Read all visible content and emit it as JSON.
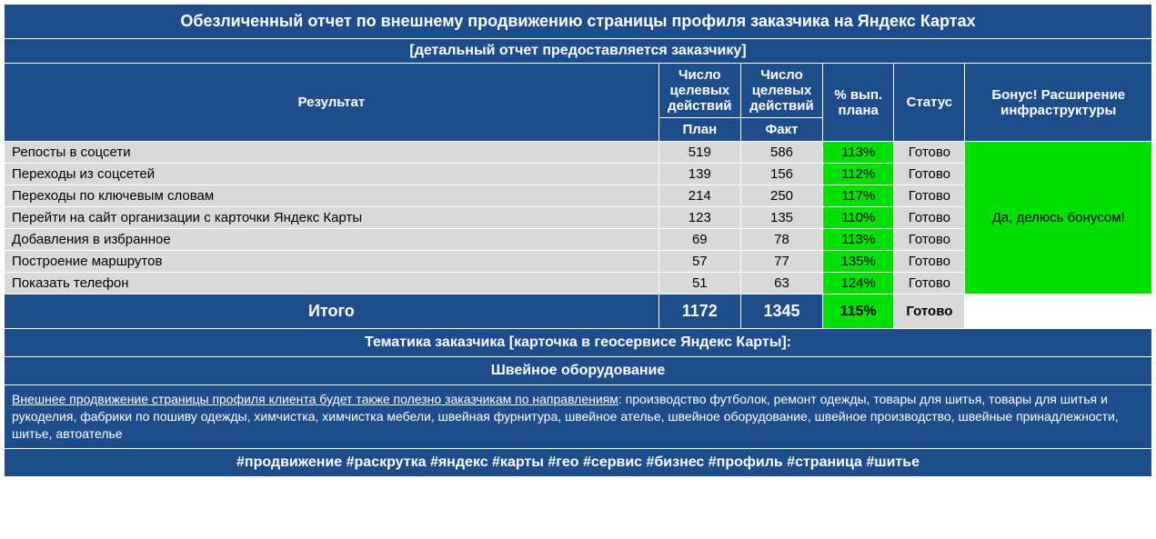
{
  "colors": {
    "header_bg": "#1e4d8c",
    "header_text": "#ffffff",
    "row_bg": "#d9d9d9",
    "row_text": "#000000",
    "green": "#00e000",
    "border": "#ffffff"
  },
  "title": "Обезличенный отчет по внешнему продвижению страницы профиля заказчика на Яндекс Картах",
  "subtitle": "[детальный отчет предоставляется заказчику]",
  "columns": {
    "result": "Результат",
    "actions": "Число целевых действий",
    "plan": "План",
    "fact": "Факт",
    "pct": "% вып. плана",
    "status": "Статус",
    "bonus": "Бонус! Расширение инфраструктуры"
  },
  "rows": [
    {
      "label": "Репосты в соцсети",
      "plan": 519,
      "fact": 586,
      "pct": "113%",
      "status": "Готово"
    },
    {
      "label": "Переходы из соцсетей",
      "plan": 139,
      "fact": 156,
      "pct": "112%",
      "status": "Готово"
    },
    {
      "label": "Переходы по ключевым словам",
      "plan": 214,
      "fact": 250,
      "pct": "117%",
      "status": "Готово"
    },
    {
      "label": "Перейти на сайт организации с карточки Яндекс Карты",
      "plan": 123,
      "fact": 135,
      "pct": "110%",
      "status": "Готово"
    },
    {
      "label": "Добавления в избранное",
      "plan": 69,
      "fact": 78,
      "pct": "113%",
      "status": "Готово"
    },
    {
      "label": "Построение маршрутов",
      "plan": 57,
      "fact": 77,
      "pct": "135%",
      "status": "Готово"
    },
    {
      "label": "Показать телефон",
      "plan": 51,
      "fact": 63,
      "pct": "124%",
      "status": "Готово"
    }
  ],
  "total": {
    "label": "Итого",
    "plan": 1172,
    "fact": 1345,
    "pct": "115%",
    "status": "Готово"
  },
  "bonus_text": "Да, делюсь бонусом!",
  "theme_header": "Тематика заказчика [карточка в геосервисе Яндекс Карты]:",
  "theme_value": "Швейное оборудование",
  "desc_lead": "Внешнее продвижение страницы профиля клиента будет также полезно заказчикам по направлениям",
  "desc_rest": ": производство футболок, ремонт одежды, товары для шитья, товары для шитья и рукоделия, фабрики по пошиву одежды, химчистка, химчистка мебели, швейная фурнитура, швейное ателье, швейное оборудование, швейное производство, швейные принадлежности, шитье, автоателье",
  "tags": "#продвижение #раскрутка #яндекс #карты #гео #сервис #бизнес #профиль #страница #шитье"
}
